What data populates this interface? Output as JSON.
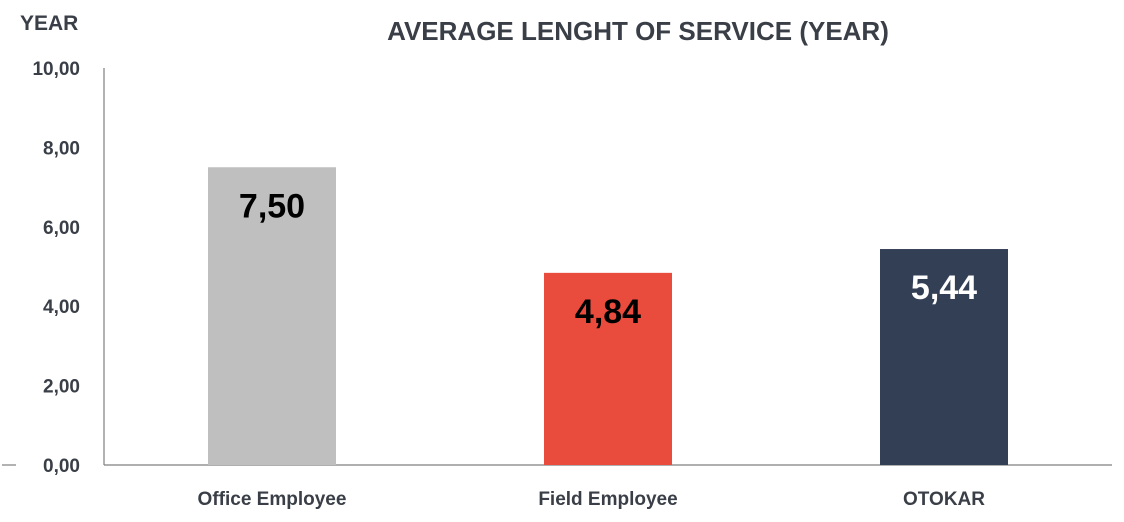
{
  "chart_data": {
    "type": "bar",
    "title": "AVERAGE LENGHT OF SERVICE  (YEAR)",
    "ylabel": "YEAR",
    "xlabel": "",
    "categories": [
      "Office Employee",
      "Field Employee",
      "OTOKAR"
    ],
    "values": [
      7.5,
      4.84,
      5.44
    ],
    "value_labels": [
      "7,50",
      "4,84",
      "5,44"
    ],
    "bar_colors": [
      "#bfbfbf",
      "#e94b3c",
      "#333f55"
    ],
    "value_label_colors": [
      "#000000",
      "#000000",
      "#ffffff"
    ],
    "ylim": [
      0,
      10
    ],
    "yticks": [
      0,
      2,
      4,
      6,
      8,
      10
    ],
    "ytick_labels": [
      "0,00",
      "2,00",
      "4,00",
      "6,00",
      "8,00",
      "10,00"
    ],
    "grid": false,
    "legend": "none"
  }
}
